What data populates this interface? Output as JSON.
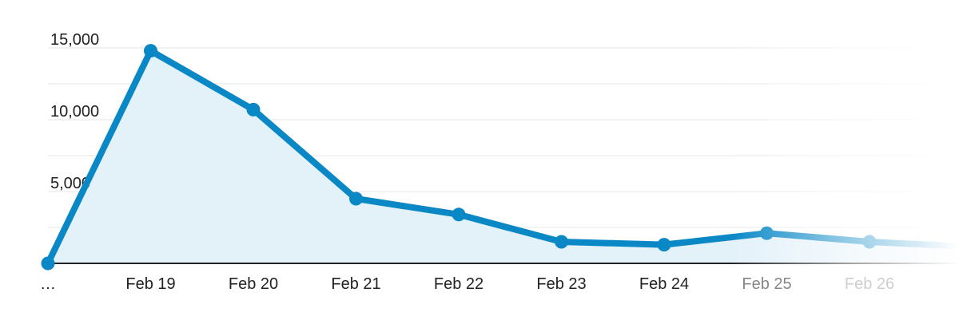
{
  "chart_data": {
    "type": "area",
    "title": "",
    "xlabel": "",
    "ylabel": "",
    "categories": [
      "…",
      "Feb 19",
      "Feb 20",
      "Feb 21",
      "Feb 22",
      "Feb 23",
      "Feb 24",
      "Feb 25",
      "Feb 26"
    ],
    "values": [
      0,
      14800,
      10700,
      4500,
      3400,
      1500,
      1300,
      2100,
      1500
    ],
    "trailing_value": 1200,
    "ylim": [
      0,
      15000
    ],
    "yticks": [
      5000,
      10000,
      15000
    ],
    "ytick_labels": [
      "5,000",
      "10,000",
      "15,000"
    ],
    "grid": true,
    "legend": "none",
    "colors": {
      "line": "#0a88c6",
      "fill": "#e3f1f9",
      "grid": "#e6e6e6",
      "axis": "#222222"
    }
  }
}
